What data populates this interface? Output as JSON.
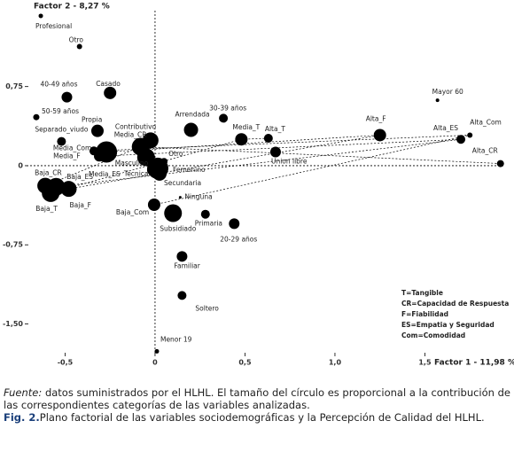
{
  "chart_data": {
    "type": "scatter",
    "y_axis_title": "Factor 2 - 8,27 %",
    "x_axis_title": "Factor 1 - 11,98 %",
    "labels": [
      "Baja_CR",
      "Baja_ES",
      "Baja_T",
      "Baja_F",
      "Baja_Com",
      "Profesional",
      "Otro",
      "40-49 años",
      "Casado",
      "50-59 años",
      "Propia",
      "Separado_viudo",
      "Contributivo",
      "Media_CR",
      "Arrendada",
      "30-39 años",
      "Media_T",
      "Alta_T",
      "Union libre",
      "Alta_F",
      "Mayor 60",
      "Alta_ES",
      "Alta_Com",
      "Alta_CR",
      "Media_Com",
      "Media_F",
      "Media_ES",
      "Masculino",
      "Otro",
      "Femenino",
      "Tecnica",
      "Secundaria",
      "Subsidiado",
      "Ninguna",
      "Primaria",
      "20-29 años",
      "Familiar",
      "Soltero",
      "Menor 19"
    ],
    "x": [
      -0.61,
      -0.55,
      -0.58,
      -0.48,
      -0.005,
      -0.635,
      -0.42,
      -0.49,
      -0.25,
      -0.66,
      -0.32,
      -0.52,
      -0.025,
      -0.08,
      0.2,
      0.38,
      0.48,
      0.63,
      0.67,
      1.25,
      1.57,
      1.7,
      1.75,
      1.92,
      -0.34,
      -0.27,
      -0.31,
      -0.05,
      0.05,
      0.015,
      -0.015,
      0.025,
      0.1,
      0.14,
      0.28,
      0.44,
      0.15,
      0.15,
      0.01
    ],
    "y": [
      -0.19,
      -0.2,
      -0.26,
      -0.22,
      -0.37,
      1.42,
      1.13,
      0.65,
      0.69,
      0.46,
      0.33,
      0.23,
      0.24,
      0.18,
      0.34,
      0.45,
      0.25,
      0.26,
      0.13,
      0.29,
      0.62,
      0.25,
      0.29,
      0.02,
      0.14,
      0.13,
      0.09,
      0.08,
      0.04,
      -0.025,
      -0.04,
      -0.075,
      -0.45,
      -0.3,
      -0.46,
      -0.55,
      -0.86,
      -1.23,
      -1.76
    ],
    "sizes": [
      9,
      10,
      10,
      9,
      7,
      2.5,
      3,
      6,
      7,
      3.5,
      7,
      5,
      9,
      10,
      8,
      5,
      7,
      5,
      6,
      7,
      2,
      5,
      3,
      4,
      5,
      12,
      6,
      10,
      4,
      12,
      6,
      8,
      10,
      1.5,
      5,
      6,
      6,
      5,
      2.5
    ],
    "color": "#000000",
    "xlim": [
      -0.714,
      1.946
    ],
    "ylim": [
      -1.79,
      1.47
    ],
    "xticks": [
      {
        "value": -0.5,
        "label": "-0,5"
      },
      0,
      {
        "value": 0.5,
        "label": "0,5"
      },
      {
        "value": 1.0,
        "label": "1,0"
      },
      {
        "value": 1.5,
        "label": "1,5"
      }
    ],
    "yticks": [
      {
        "value": 0.75,
        "label": "0,75"
      },
      0,
      {
        "value": -0.75,
        "label": "-0,75"
      },
      {
        "value": -1.5,
        "label": "-1,50"
      }
    ],
    "legend": [
      "T=Tangible",
      "CR=Capacidad de Respuesta",
      "F=Fiabilidad",
      "ES=Empatia y Seguridad",
      "Com=Comodidad"
    ]
  },
  "caption": {
    "source_label": "Fuente:",
    "source_text": "datos suministrados por el HLHL. El tamaño del círculo es proporcional a la contribución de las correspondientes categorías de las variables analizadas.",
    "fig_label": "Fig. 2.",
    "fig_text": "Plano factorial de las variables sociodemográficas y la Percepción de Calidad del HLHL."
  }
}
